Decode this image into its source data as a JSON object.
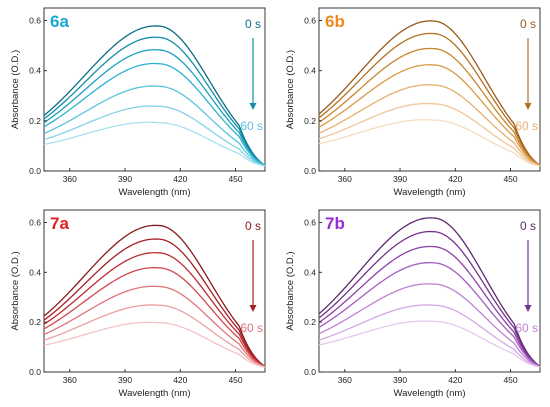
{
  "chart_data": [
    {
      "type": "line",
      "panel": "6a",
      "label_color": "#1aa6d6",
      "colors": [
        "#0b6f84",
        "#108ea6",
        "#1aa0bd",
        "#2eb2cf",
        "#5ac4dd",
        "#84d3e6",
        "#a8e0ee"
      ],
      "time_start": "0 s",
      "time_end": "60 s",
      "xlabel": "Wavelength (nm)",
      "ylabel": "Absorbance (O.D.)",
      "xlim": [
        346,
        466
      ],
      "ylim": [
        0,
        0.65
      ],
      "xticks": [
        360,
        390,
        420,
        450
      ],
      "yticks": [
        0.0,
        0.2,
        0.4,
        0.6
      ],
      "series_peaks": [
        0.58,
        0.535,
        0.485,
        0.43,
        0.34,
        0.26,
        0.195
      ]
    },
    {
      "type": "line",
      "panel": "6b",
      "label_color": "#ee8a1c",
      "colors": [
        "#9a5a1a",
        "#b5701f",
        "#c9852c",
        "#d99a45",
        "#e6b070",
        "#efc79a",
        "#f5dcbf"
      ],
      "time_start": "0 s",
      "time_end": "60 s",
      "xlabel": "Wavelength (nm)",
      "ylabel": "Absorbance (O.D.)",
      "xlim": [
        346,
        466
      ],
      "ylim": [
        0,
        0.65
      ],
      "xticks": [
        360,
        390,
        420,
        450
      ],
      "yticks": [
        0.0,
        0.2,
        0.4,
        0.6
      ],
      "series_peaks": [
        0.6,
        0.55,
        0.49,
        0.425,
        0.345,
        0.27,
        0.205
      ]
    },
    {
      "type": "line",
      "panel": "7a",
      "label_color": "#e02020",
      "colors": [
        "#8a1a1a",
        "#a51e24",
        "#bd2a30",
        "#d0484c",
        "#df7479",
        "#eb9ea2",
        "#f3c3c5"
      ],
      "time_start": "0 s",
      "time_end": "60 s",
      "xlabel": "Wavelength (nm)",
      "ylabel": "Absorbance (O.D.)",
      "xlim": [
        346,
        466
      ],
      "ylim": [
        0,
        0.65
      ],
      "xticks": [
        360,
        390,
        420,
        450
      ],
      "yticks": [
        0.0,
        0.2,
        0.4,
        0.6
      ],
      "series_peaks": [
        0.59,
        0.535,
        0.48,
        0.42,
        0.345,
        0.27,
        0.2
      ]
    },
    {
      "type": "line",
      "panel": "7b",
      "label_color": "#9b2bd6",
      "colors": [
        "#5b2a6e",
        "#73338c",
        "#8c40a8",
        "#a45cc0",
        "#bd82d3",
        "#d2a8e2",
        "#e4c9ef"
      ],
      "time_start": "0 s",
      "time_end": "60 s",
      "xlabel": "Wavelength (nm)",
      "ylabel": "Absorbance (O.D.)",
      "xlim": [
        346,
        466
      ],
      "ylim": [
        0,
        0.65
      ],
      "xticks": [
        360,
        390,
        420,
        450
      ],
      "yticks": [
        0.0,
        0.2,
        0.4,
        0.6
      ],
      "series_peaks": [
        0.62,
        0.565,
        0.505,
        0.44,
        0.355,
        0.27,
        0.205
      ]
    }
  ]
}
